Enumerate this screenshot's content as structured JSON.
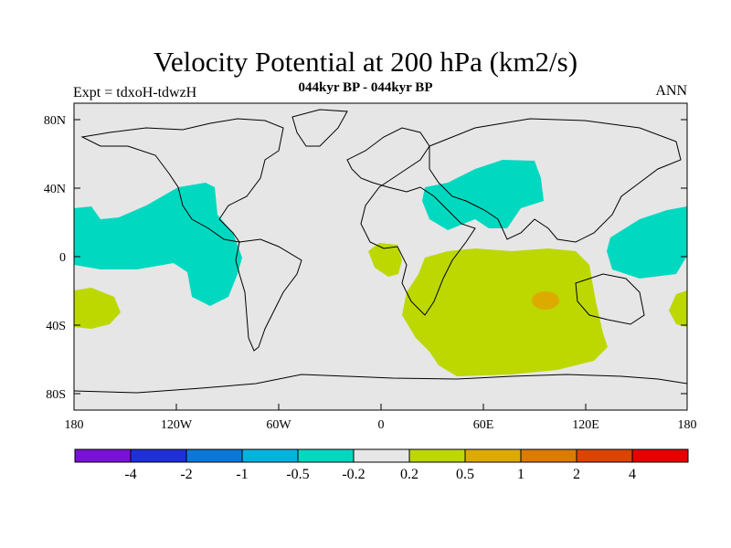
{
  "title": "Velocity Potential at 200 hPa (km2/s)",
  "subtitle": "044kyr BP - 044kyr BP",
  "left_label": "Expt = tdxoH-tdwzH",
  "right_label": "ANN",
  "colors": {
    "background_band": "#e6e6e6",
    "negative_light": "#00d9c0",
    "positive_light": "#bcd800",
    "positive_mid": "#ddaa00",
    "coast": "#000000"
  },
  "lat_ticks": [
    "80N",
    "40N",
    "0",
    "40S",
    "80S"
  ],
  "lon_ticks": [
    "180",
    "120W",
    "60W",
    "0",
    "60E",
    "120E",
    "180"
  ],
  "colorbar": {
    "colors": [
      "#7a11d8",
      "#2030d8",
      "#0a78d8",
      "#00b4e0",
      "#00d9c0",
      "#e6e6e6",
      "#bcd800",
      "#ddaa00",
      "#dd7a00",
      "#dd4400",
      "#e80000"
    ],
    "labels": [
      "-4",
      "-2",
      "-1",
      "-0.5",
      "-0.2",
      "0.2",
      "0.5",
      "1",
      "2",
      "4"
    ]
  }
}
